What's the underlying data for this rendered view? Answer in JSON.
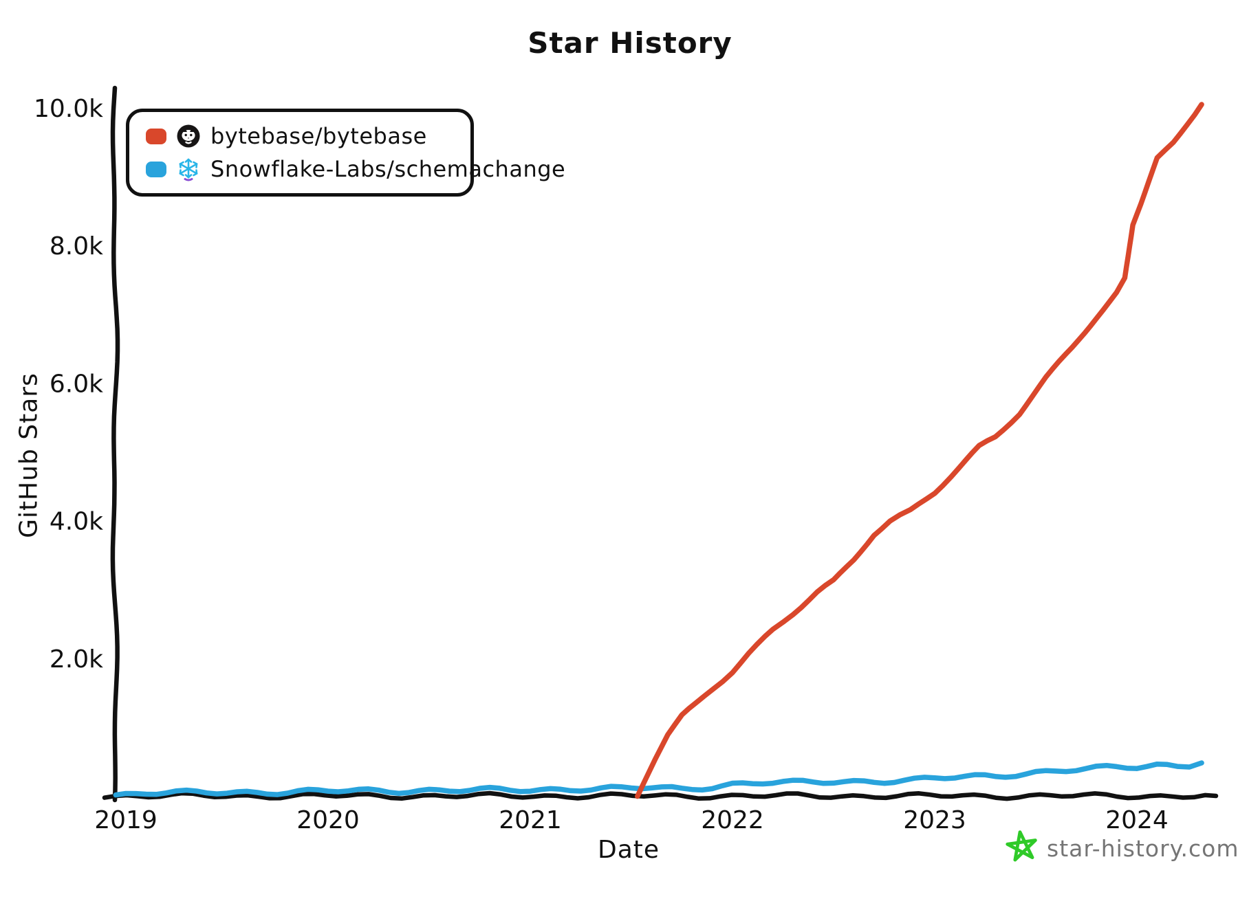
{
  "title": "Star History",
  "axes": {
    "x_title": "Date",
    "y_title": "GitHub Stars"
  },
  "legend": [
    {
      "label": "bytebase/bytebase",
      "color": "#d9472b",
      "icon": "github-octocat-icon"
    },
    {
      "label": "Snowflake-Labs/schemachange",
      "color": "#29a3dc",
      "icon": "snowflake-icon"
    }
  ],
  "watermark": {
    "text": "star-history.com",
    "star_color": "#2fca28",
    "text_color": "#757575"
  },
  "colors": {
    "axis": "#111111",
    "bytebase_line": "#d9472b",
    "schemachange_line": "#29a3dc"
  },
  "chart_data": {
    "type": "line",
    "title": "Star History",
    "xlabel": "Date",
    "ylabel": "GitHub Stars",
    "grid": false,
    "legend_position": "top-left",
    "xlim": [
      2018.9,
      2024.45
    ],
    "ylim": [
      0,
      10300
    ],
    "x_ticks": [
      {
        "v": 2019,
        "label": "2019"
      },
      {
        "v": 2020,
        "label": "2020"
      },
      {
        "v": 2021,
        "label": "2021"
      },
      {
        "v": 2022,
        "label": "2022"
      },
      {
        "v": 2023,
        "label": "2023"
      },
      {
        "v": 2024,
        "label": "2024"
      }
    ],
    "y_ticks": [
      {
        "v": 2000,
        "label": "2.0k"
      },
      {
        "v": 4000,
        "label": "4.0k"
      },
      {
        "v": 6000,
        "label": "6.0k"
      },
      {
        "v": 8000,
        "label": "8.0k"
      },
      {
        "v": 10000,
        "label": "10.0k"
      }
    ],
    "series": [
      {
        "name": "bytebase/bytebase",
        "color": "#d9472b",
        "points": [
          [
            2021.53,
            0
          ],
          [
            2021.57,
            250
          ],
          [
            2021.62,
            550
          ],
          [
            2021.68,
            880
          ],
          [
            2021.75,
            1150
          ],
          [
            2021.82,
            1330
          ],
          [
            2021.9,
            1550
          ],
          [
            2022.0,
            1800
          ],
          [
            2022.08,
            2050
          ],
          [
            2022.2,
            2400
          ],
          [
            2022.3,
            2650
          ],
          [
            2022.42,
            2950
          ],
          [
            2022.5,
            3100
          ],
          [
            2022.6,
            3420
          ],
          [
            2022.7,
            3800
          ],
          [
            2022.78,
            3980
          ],
          [
            2022.88,
            4120
          ],
          [
            2023.0,
            4400
          ],
          [
            2023.12,
            4750
          ],
          [
            2023.22,
            5050
          ],
          [
            2023.3,
            5200
          ],
          [
            2023.42,
            5550
          ],
          [
            2023.55,
            6050
          ],
          [
            2023.68,
            6500
          ],
          [
            2023.8,
            6950
          ],
          [
            2023.9,
            7300
          ],
          [
            2023.94,
            7500
          ],
          [
            2023.98,
            8300
          ],
          [
            2024.02,
            8600
          ],
          [
            2024.1,
            9250
          ],
          [
            2024.18,
            9500
          ],
          [
            2024.25,
            9780
          ],
          [
            2024.32,
            10050
          ]
        ]
      },
      {
        "name": "Snowflake-Labs/schemachange",
        "color": "#29a3dc",
        "points": [
          [
            2018.95,
            15
          ],
          [
            2019.1,
            45
          ],
          [
            2019.3,
            40
          ],
          [
            2019.6,
            55
          ],
          [
            2019.9,
            65
          ],
          [
            2020.2,
            70
          ],
          [
            2020.5,
            85
          ],
          [
            2020.8,
            80
          ],
          [
            2021.0,
            85
          ],
          [
            2021.25,
            110
          ],
          [
            2021.45,
            105
          ],
          [
            2021.6,
            115
          ],
          [
            2021.75,
            100
          ],
          [
            2021.9,
            140
          ],
          [
            2022.0,
            175
          ],
          [
            2022.15,
            195
          ],
          [
            2022.3,
            185
          ],
          [
            2022.5,
            205
          ],
          [
            2022.7,
            220
          ],
          [
            2022.9,
            230
          ],
          [
            2023.0,
            250
          ],
          [
            2023.15,
            270
          ],
          [
            2023.3,
            290
          ],
          [
            2023.5,
            350
          ],
          [
            2023.7,
            385
          ],
          [
            2023.85,
            400
          ],
          [
            2024.0,
            415
          ],
          [
            2024.1,
            450
          ],
          [
            2024.2,
            440
          ],
          [
            2024.32,
            480
          ]
        ]
      }
    ]
  }
}
